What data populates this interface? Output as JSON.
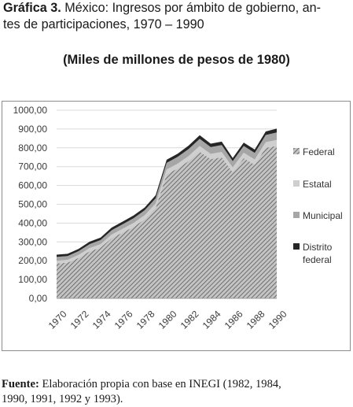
{
  "header": {
    "figure_label": "Gráfica 3.",
    "title_line1": " México: Ingresos por ámbito de gobierno, an-",
    "title_line2": "tes de participaciones, 1970 – 1990",
    "subtitle": "(Miles de millones de pesos de 1980)"
  },
  "footer": {
    "source_label": "Fuente:",
    "source_line1": " Elaboración propia con base en INEGI (1982, 1984,",
    "source_line2": "1990, 1991, 1992 y 1993)."
  },
  "chart_data": {
    "type": "area",
    "stacked": true,
    "x": [
      1970,
      1971,
      1972,
      1973,
      1974,
      1975,
      1976,
      1977,
      1978,
      1979,
      1980,
      1981,
      1982,
      1983,
      1984,
      1985,
      1986,
      1987,
      1988,
      1989,
      1990
    ],
    "x_tick_labels": [
      "1970",
      "1972",
      "1974",
      "1976",
      "1978",
      "1980",
      "1982",
      "1984",
      "1986",
      "1988",
      "1990"
    ],
    "y_tick_labels": [
      "0,00",
      "100,00",
      "200,00",
      "300,00",
      "400,00",
      "500,00",
      "600,00",
      "700,00",
      "800,00",
      "900,00",
      "1000,00"
    ],
    "ylim": [
      0,
      1000
    ],
    "grid": true,
    "legend_position": "right",
    "series": [
      {
        "name": "Federal",
        "pattern": "hatched",
        "color": "#8f8f8f",
        "values": [
          185,
          190,
          215,
          250,
          270,
          320,
          350,
          380,
          420,
          480,
          660,
          690,
          730,
          780,
          740,
          750,
          670,
          745,
          710,
          800,
          810
        ]
      },
      {
        "name": "Estatal",
        "color": "#cfcfcf",
        "values": [
          15,
          15,
          16,
          17,
          18,
          19,
          20,
          21,
          22,
          24,
          25,
          26,
          27,
          30,
          28,
          28,
          26,
          29,
          28,
          30,
          32
        ]
      },
      {
        "name": "Municipal",
        "color": "#a6a6a6",
        "values": [
          20,
          20,
          20,
          21,
          22,
          23,
          24,
          25,
          26,
          28,
          35,
          36,
          37,
          38,
          36,
          37,
          33,
          36,
          35,
          38,
          40
        ]
      },
      {
        "name": "Distrito federal",
        "legend_lines": [
          "Distrito",
          "federal"
        ],
        "color": "#262626",
        "values": [
          12,
          12,
          12,
          13,
          13,
          14,
          14,
          15,
          15,
          16,
          17,
          17,
          18,
          19,
          18,
          18,
          17,
          18,
          18,
          19,
          20
        ]
      }
    ]
  }
}
